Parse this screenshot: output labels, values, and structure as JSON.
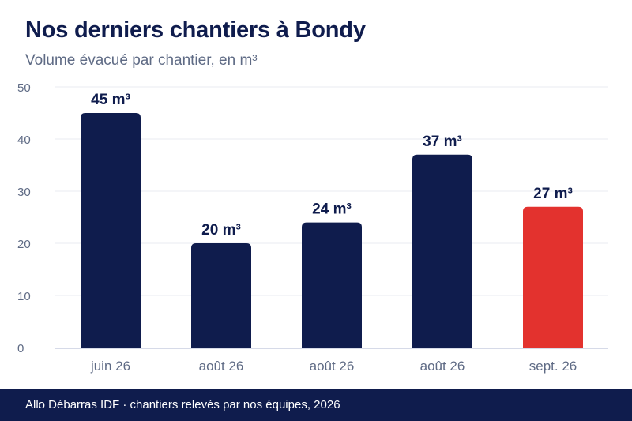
{
  "header": {
    "title": "Nos derniers chantiers à Bondy",
    "subtitle": "Volume évacué par chantier, en m³"
  },
  "chart_data": {
    "type": "bar",
    "categories": [
      "juin 26",
      "août 26",
      "août 26",
      "août 26",
      "sept. 26"
    ],
    "values": [
      45,
      20,
      24,
      37,
      27
    ],
    "data_labels": [
      "45 m³",
      "20 m³",
      "24 m³",
      "37 m³",
      "27 m³"
    ],
    "title": "Nos derniers chantiers à Bondy",
    "subtitle": "Volume évacué par chantier, en m³",
    "ylim": [
      0,
      50
    ],
    "yticks": [
      0,
      10,
      20,
      30,
      40,
      50
    ],
    "grid": true,
    "colors": {
      "default_bar": "#0f1c4d",
      "highlight_bar": "#e3322e",
      "highlight_index": 4
    }
  },
  "footer": {
    "text": "Allo Débarras IDF · chantiers relevés par nos équipes, 2026"
  }
}
